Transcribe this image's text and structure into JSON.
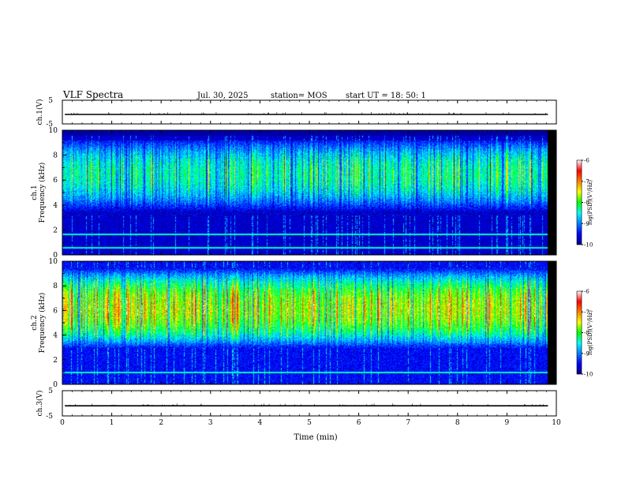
{
  "header": {
    "title": "VLF Spectra",
    "date": "Jul. 30, 2025",
    "station": "station= MOS",
    "start_time": "start UT =  18: 50: 1"
  },
  "chart_data": {
    "type": "heatmap",
    "title": "VLF Spectra",
    "xlabel": "Time (min)",
    "xlim": [
      0,
      10
    ],
    "x_ticks": [
      "0",
      "1",
      "2",
      "3",
      "4",
      "5",
      "6",
      "7",
      "8",
      "9",
      "10"
    ],
    "data_end_min": 9.83,
    "panels": [
      {
        "id": "ch1-voltage",
        "kind": "trace",
        "ylabel": "ch.1(V)",
        "ylim": [
          -5,
          5
        ],
        "y_ticks": [
          "5",
          "-5"
        ],
        "trace_level": -1
      },
      {
        "id": "ch1-spectrogram",
        "kind": "spectrogram",
        "ylabel_top": "ch.1",
        "ylabel": "Frequency (kHz)",
        "ylim": [
          0,
          10
        ],
        "y_ticks": [
          "0",
          "2",
          "4",
          "6",
          "8",
          "10"
        ],
        "profile_peak_khz": 6.5,
        "profile_peak_log_psd": -8.0,
        "background_log_psd": -9.7,
        "noise_band_khz": [
          3.2,
          9.2
        ],
        "tonal_lines_khz": [
          0.6,
          1.7
        ],
        "colorbar": {
          "label": "log(PSD)(V²/Hz)",
          "range": [
            -10,
            -6
          ],
          "ticks": [
            "-6",
            "-7",
            "-8",
            "-9",
            "-10"
          ]
        }
      },
      {
        "id": "ch2-spectrogram",
        "kind": "spectrogram",
        "ylabel_top": "ch.2",
        "ylabel": "Frequency (kHz)",
        "ylim": [
          0,
          10
        ],
        "y_ticks": [
          "0",
          "2",
          "4",
          "6",
          "8",
          "10"
        ],
        "profile_peak_khz": 6.2,
        "profile_peak_log_psd": -7.1,
        "background_log_psd": -9.5,
        "noise_band_khz": [
          3.0,
          9.5
        ],
        "tonal_lines_khz": [
          1.0
        ],
        "colorbar": {
          "label": "log(PSD)(V²/Hz)",
          "range": [
            -10,
            -6
          ],
          "ticks": [
            "-6",
            "-7",
            "-8",
            "-9",
            "-10"
          ]
        }
      },
      {
        "id": "ch3-voltage",
        "kind": "trace",
        "ylabel": "ch.3(V)",
        "ylim": [
          -5,
          5
        ],
        "y_ticks": [
          "5",
          "-5"
        ],
        "trace_level": -1
      }
    ]
  }
}
